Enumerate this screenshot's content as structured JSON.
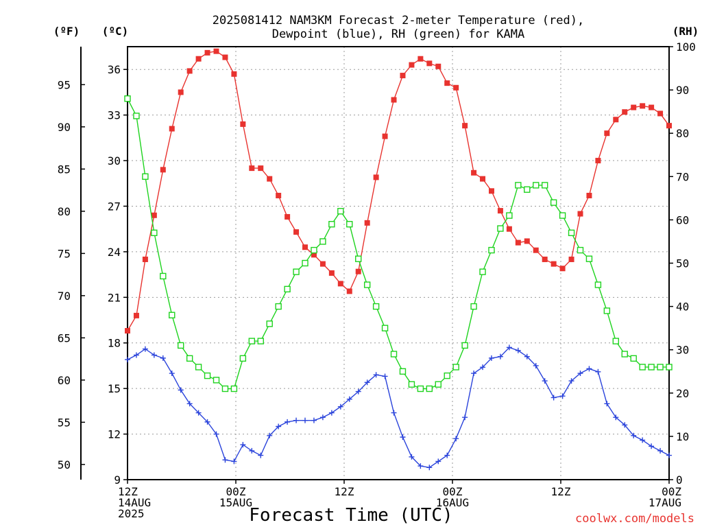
{
  "chart_data": {
    "type": "line",
    "title": [
      "2025081412 NAM3KM Forecast 2-meter Temperature (red),",
      "Dewpoint (blue), RH (green) for KAMA"
    ],
    "xlabel": "Forecast Time (UTC)",
    "credit": "coolwx.com/models",
    "units": {
      "fahrenheit": "(ºF)",
      "celsius": "(ºC)",
      "rh": "(RH)"
    },
    "x_ticks": [
      {
        "hour": 0,
        "lines": [
          "12Z",
          "14AUG",
          "2025"
        ]
      },
      {
        "hour": 12,
        "lines": [
          "00Z",
          "15AUG"
        ]
      },
      {
        "hour": 24,
        "lines": [
          "12Z"
        ]
      },
      {
        "hour": 36,
        "lines": [
          "00Z",
          "16AUG"
        ]
      },
      {
        "hour": 48,
        "lines": [
          "12Z"
        ]
      },
      {
        "hour": 60,
        "lines": [
          "00Z",
          "17AUG"
        ]
      }
    ],
    "xlim": [
      0,
      60
    ],
    "ylim_c": [
      9,
      37.5
    ],
    "ylim_rh": [
      0,
      100
    ],
    "celsius_ticks": [
      "9",
      "12",
      "15",
      "18",
      "21",
      "24",
      "27",
      "30",
      "33",
      "36"
    ],
    "fahrenheit_ticks": [
      "50",
      "55",
      "60",
      "65",
      "70",
      "75",
      "80",
      "85",
      "90",
      "95"
    ],
    "rh_ticks": [
      "0",
      "10",
      "20",
      "30",
      "40",
      "50",
      "60",
      "70",
      "80",
      "90",
      "100"
    ],
    "series": [
      {
        "name": "Temperature",
        "color": "#e8332f",
        "marker": "filled-square",
        "unit": "C",
        "values": [
          18.8,
          19.8,
          23.5,
          26.4,
          29.4,
          32.1,
          34.5,
          35.9,
          36.7,
          37.1,
          37.2,
          36.8,
          35.7,
          32.4,
          29.5,
          29.5,
          28.8,
          27.7,
          26.3,
          25.3,
          24.3,
          23.8,
          23.2,
          22.6,
          21.9,
          21.4,
          22.7,
          25.9,
          28.9,
          31.6,
          34.0,
          35.6,
          36.3,
          36.7,
          36.4,
          36.2,
          35.1,
          34.8,
          32.3,
          29.2,
          28.8,
          28.0,
          26.7,
          25.5,
          24.6,
          24.7,
          24.1,
          23.5,
          23.2,
          22.9,
          23.5,
          26.5,
          27.7,
          30.0,
          31.8,
          32.7,
          33.2,
          33.5,
          33.6,
          33.5,
          33.1,
          32.3
        ]
      },
      {
        "name": "Dewpoint",
        "color": "#2a43db",
        "marker": "plus",
        "unit": "C",
        "values": [
          16.9,
          17.2,
          17.6,
          17.2,
          17.0,
          16.0,
          14.9,
          14.0,
          13.4,
          12.8,
          12.0,
          10.3,
          10.2,
          11.3,
          10.9,
          10.6,
          11.9,
          12.5,
          12.8,
          12.9,
          12.9,
          12.9,
          13.1,
          13.4,
          13.8,
          14.3,
          14.8,
          15.4,
          15.9,
          15.8,
          13.4,
          11.8,
          10.5,
          9.9,
          9.8,
          10.2,
          10.6,
          11.7,
          13.1,
          16.0,
          16.4,
          17.0,
          17.1,
          17.7,
          17.5,
          17.1,
          16.5,
          15.5,
          14.4,
          14.5,
          15.5,
          16.0,
          16.3,
          16.1,
          14.0,
          13.1,
          12.6,
          11.9,
          11.6,
          11.2,
          10.9,
          10.6
        ]
      },
      {
        "name": "RH",
        "color": "#1ed31e",
        "marker": "open-square",
        "unit": "%",
        "values": [
          88,
          84,
          70,
          57,
          47,
          38,
          31,
          28,
          26,
          24,
          23,
          21,
          21,
          28,
          32,
          32,
          36,
          40,
          44,
          48,
          50,
          53,
          55,
          59,
          62,
          59,
          51,
          45,
          40,
          35,
          29,
          25,
          22,
          21,
          21,
          22,
          24,
          26,
          31,
          40,
          48,
          53,
          58,
          61,
          68,
          67,
          68,
          68,
          64,
          61,
          57,
          53,
          51,
          45,
          39,
          32,
          29,
          28,
          26,
          26,
          26,
          26
        ]
      }
    ]
  }
}
